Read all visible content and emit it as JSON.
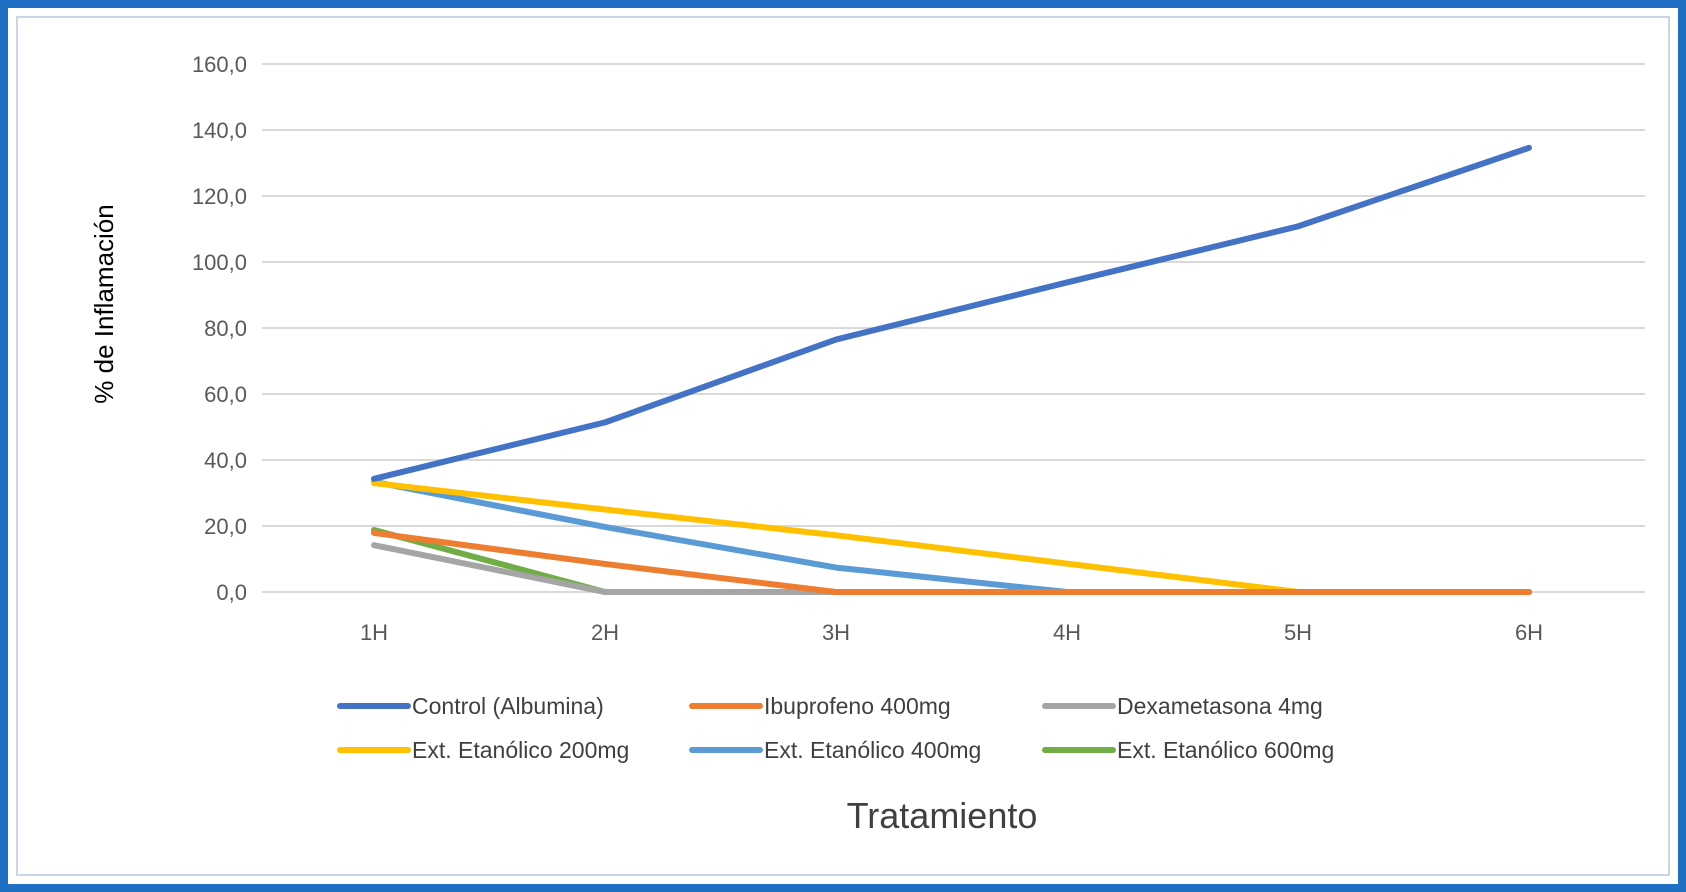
{
  "chart_data": {
    "type": "line",
    "title": "",
    "xlabel": "Tratamiento",
    "ylabel": "% de Inflamación",
    "categories": [
      "1H",
      "2H",
      "3H",
      "4H",
      "5H",
      "6H"
    ],
    "ylim": [
      0,
      160
    ],
    "yticks": [
      "0,0",
      "20,0",
      "40,0",
      "60,0",
      "80,0",
      "100,0",
      "120,0",
      "140,0",
      "160,0"
    ],
    "ytick_values": [
      0,
      20,
      40,
      60,
      80,
      100,
      120,
      140,
      160
    ],
    "grid": true,
    "legend_position": "bottom",
    "series": [
      {
        "name": "Control (Albumina)",
        "color": "#4472c4",
        "values": [
          34.3,
          51.4,
          76.5,
          93.8,
          110.8,
          134.6
        ]
      },
      {
        "name": "Ibuprofeno 400mg",
        "color": "#ed7d31",
        "values": [
          17.9,
          8.5,
          0,
          0,
          0,
          0
        ]
      },
      {
        "name": "Dexametasona 4mg",
        "color": "#a5a5a5",
        "values": [
          14.2,
          0,
          0,
          0,
          0,
          0
        ]
      },
      {
        "name": "Ext. Etanólico 200mg",
        "color": "#ffc000",
        "values": [
          33.0,
          25.0,
          17.2,
          8.6,
          0,
          0
        ]
      },
      {
        "name": "Ext. Etanólico 400mg",
        "color": "#5b9bd5",
        "values": [
          33.4,
          19.7,
          7.4,
          0,
          0,
          0
        ]
      },
      {
        "name": "Ext. Etanólico 600mg",
        "color": "#70ad47",
        "values": [
          18.8,
          0,
          0,
          0,
          0,
          0
        ]
      }
    ]
  }
}
